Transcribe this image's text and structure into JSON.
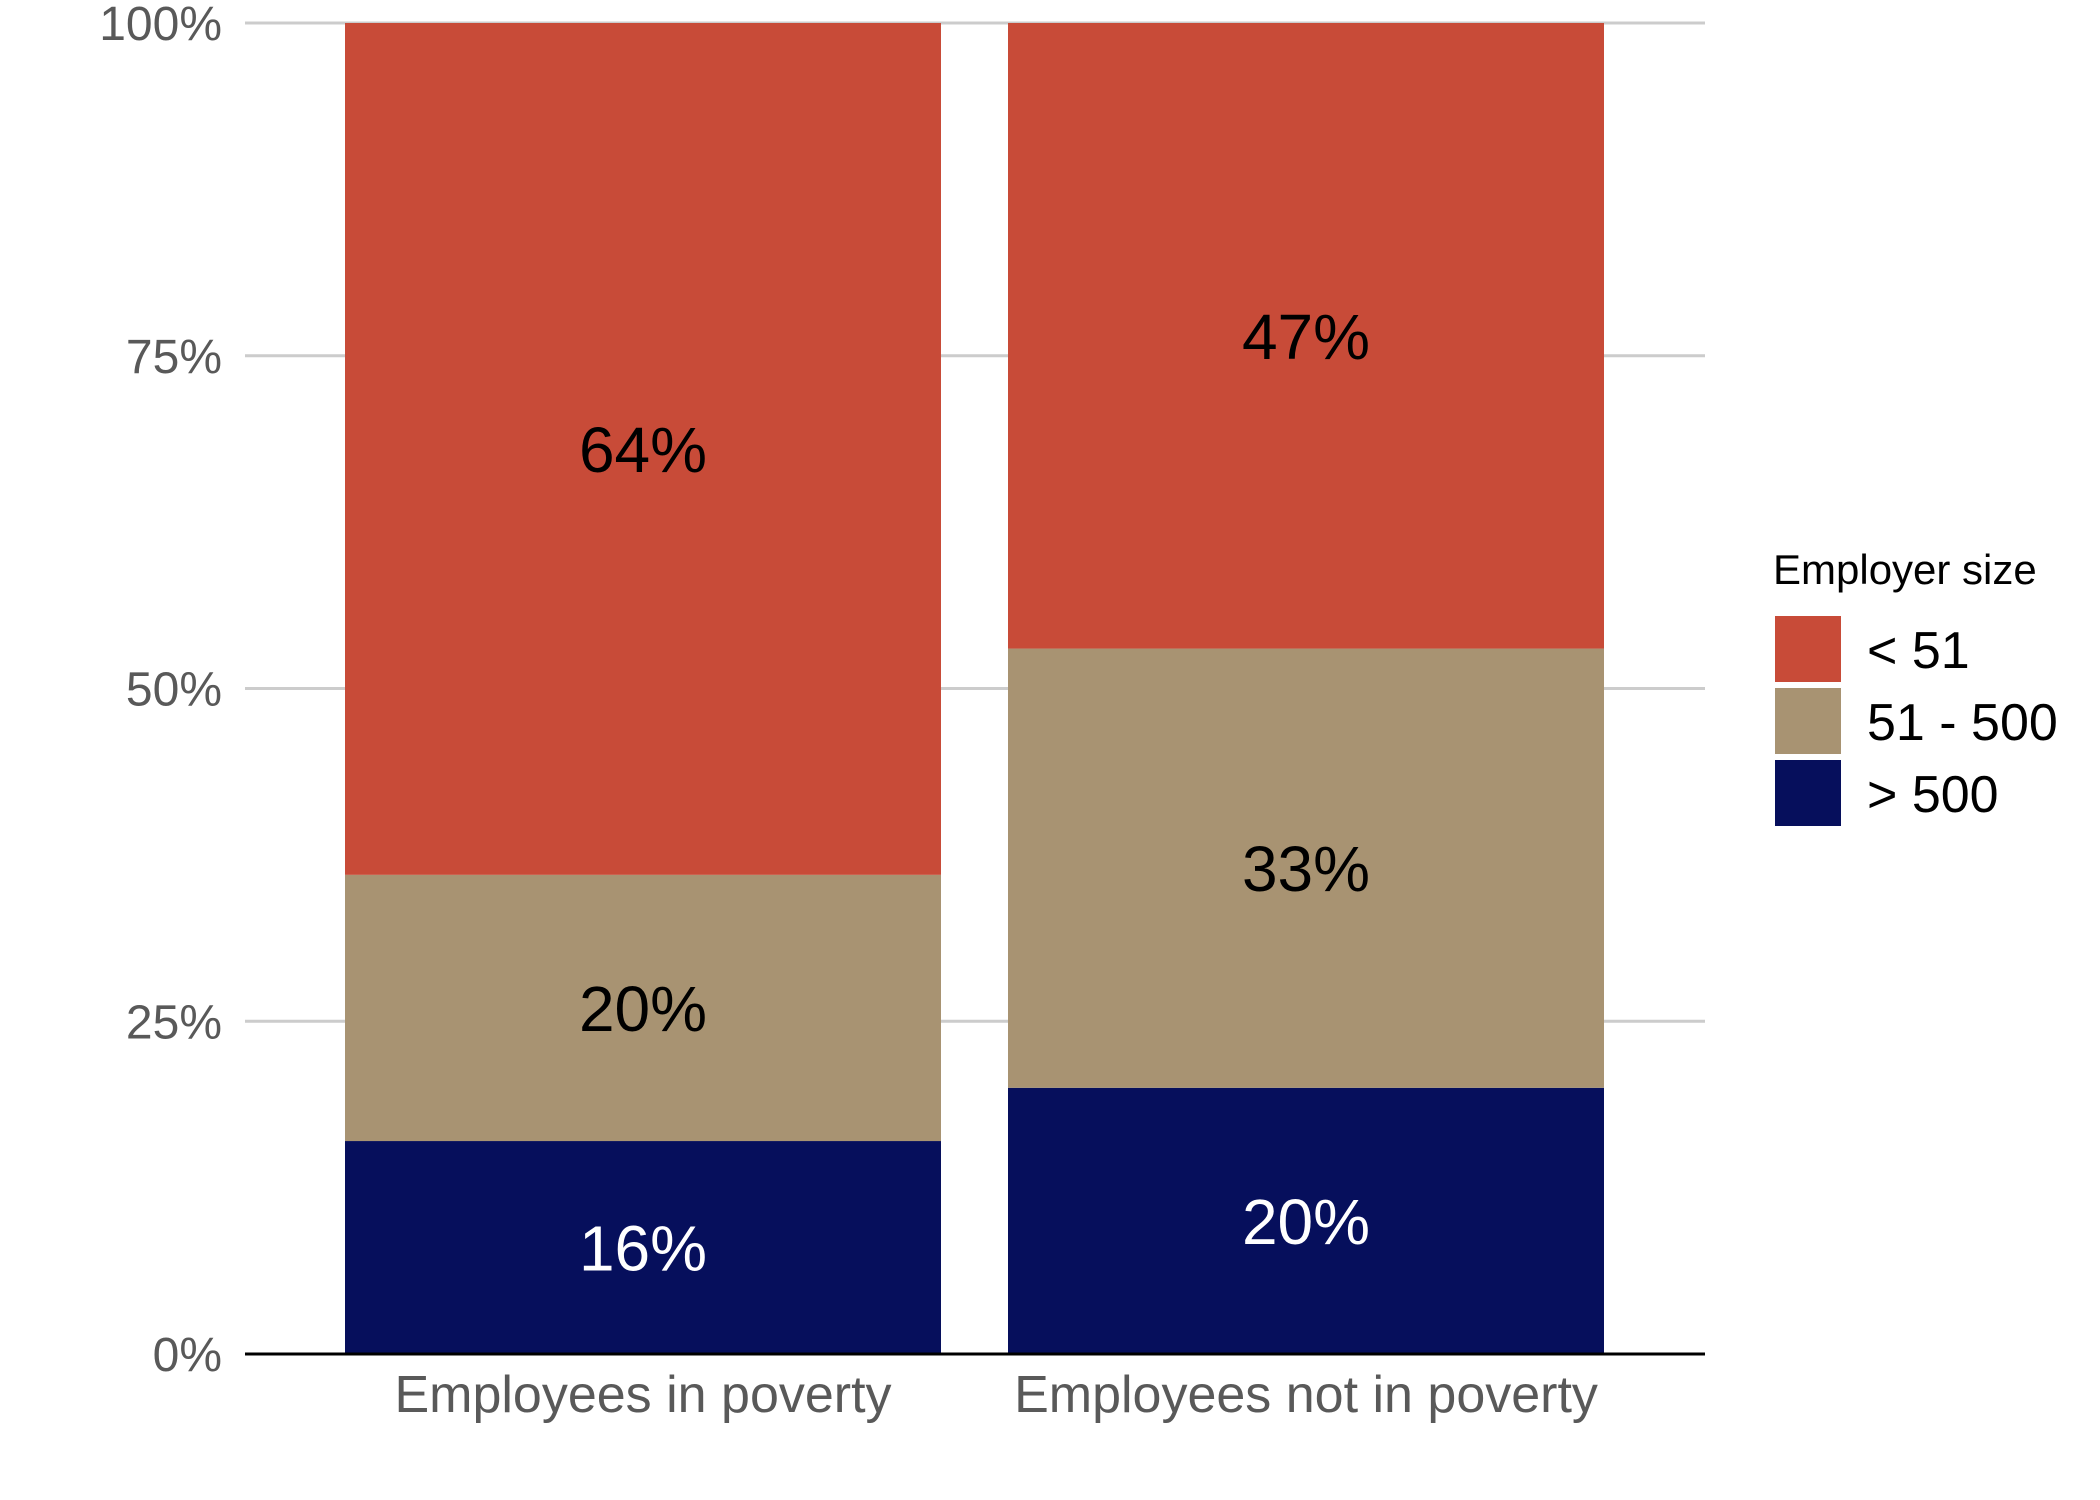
{
  "chart_data": {
    "type": "bar",
    "stacked": true,
    "title": "",
    "xlabel": "",
    "ylabel": "",
    "ylim": [
      0,
      100
    ],
    "y_ticks": [
      "0%",
      "25%",
      "50%",
      "75%",
      "100%"
    ],
    "grid": true,
    "categories": [
      "Employees in poverty",
      "Employees not in poverty"
    ],
    "series": [
      {
        "name": "> 500",
        "values": [
          16,
          20
        ],
        "labels": [
          "16%",
          "20%"
        ],
        "color": "#060f5c",
        "label_color": "#ffffff"
      },
      {
        "name": "51 - 500",
        "values": [
          20,
          33
        ],
        "labels": [
          "20%",
          "33%"
        ],
        "color": "#a89372",
        "label_color": "#000000"
      },
      {
        "name": "< 51",
        "values": [
          64,
          47
        ],
        "labels": [
          "64%",
          "47%"
        ],
        "color": "#c84b38",
        "label_color": "#000000"
      }
    ],
    "legend": {
      "title": "Employer size",
      "position": "right",
      "order": [
        "< 51",
        "51 - 500",
        "> 500"
      ]
    }
  }
}
